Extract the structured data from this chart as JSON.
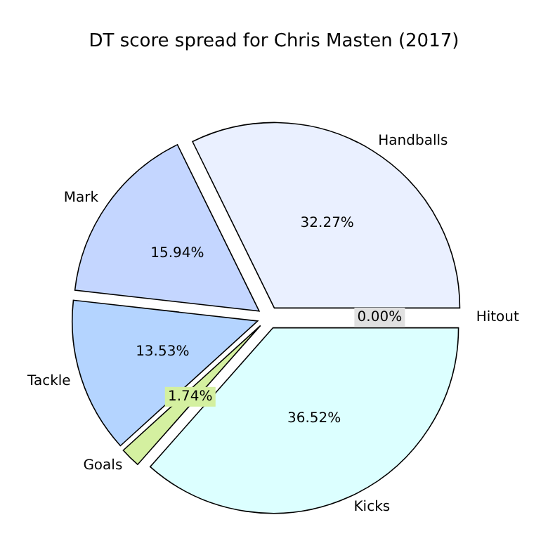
{
  "chart_data": {
    "type": "pie",
    "title": "DT score spread for Chris Masten (2017)",
    "categories": [
      "Handballs",
      "Mark",
      "Tackle",
      "Goals",
      "Kicks",
      "Hitout"
    ],
    "values": [
      32.27,
      15.94,
      13.53,
      1.74,
      36.52,
      0.0
    ],
    "colors": [
      "#eaf0ff",
      "#c4d6ff",
      "#b4d4ff",
      "#d4f0a0",
      "#dcffff",
      "#e0e0e0"
    ],
    "value_labels": [
      "32.27%",
      "15.94%",
      "13.53%",
      "1.74%",
      "36.52%",
      "0.00%"
    ]
  }
}
